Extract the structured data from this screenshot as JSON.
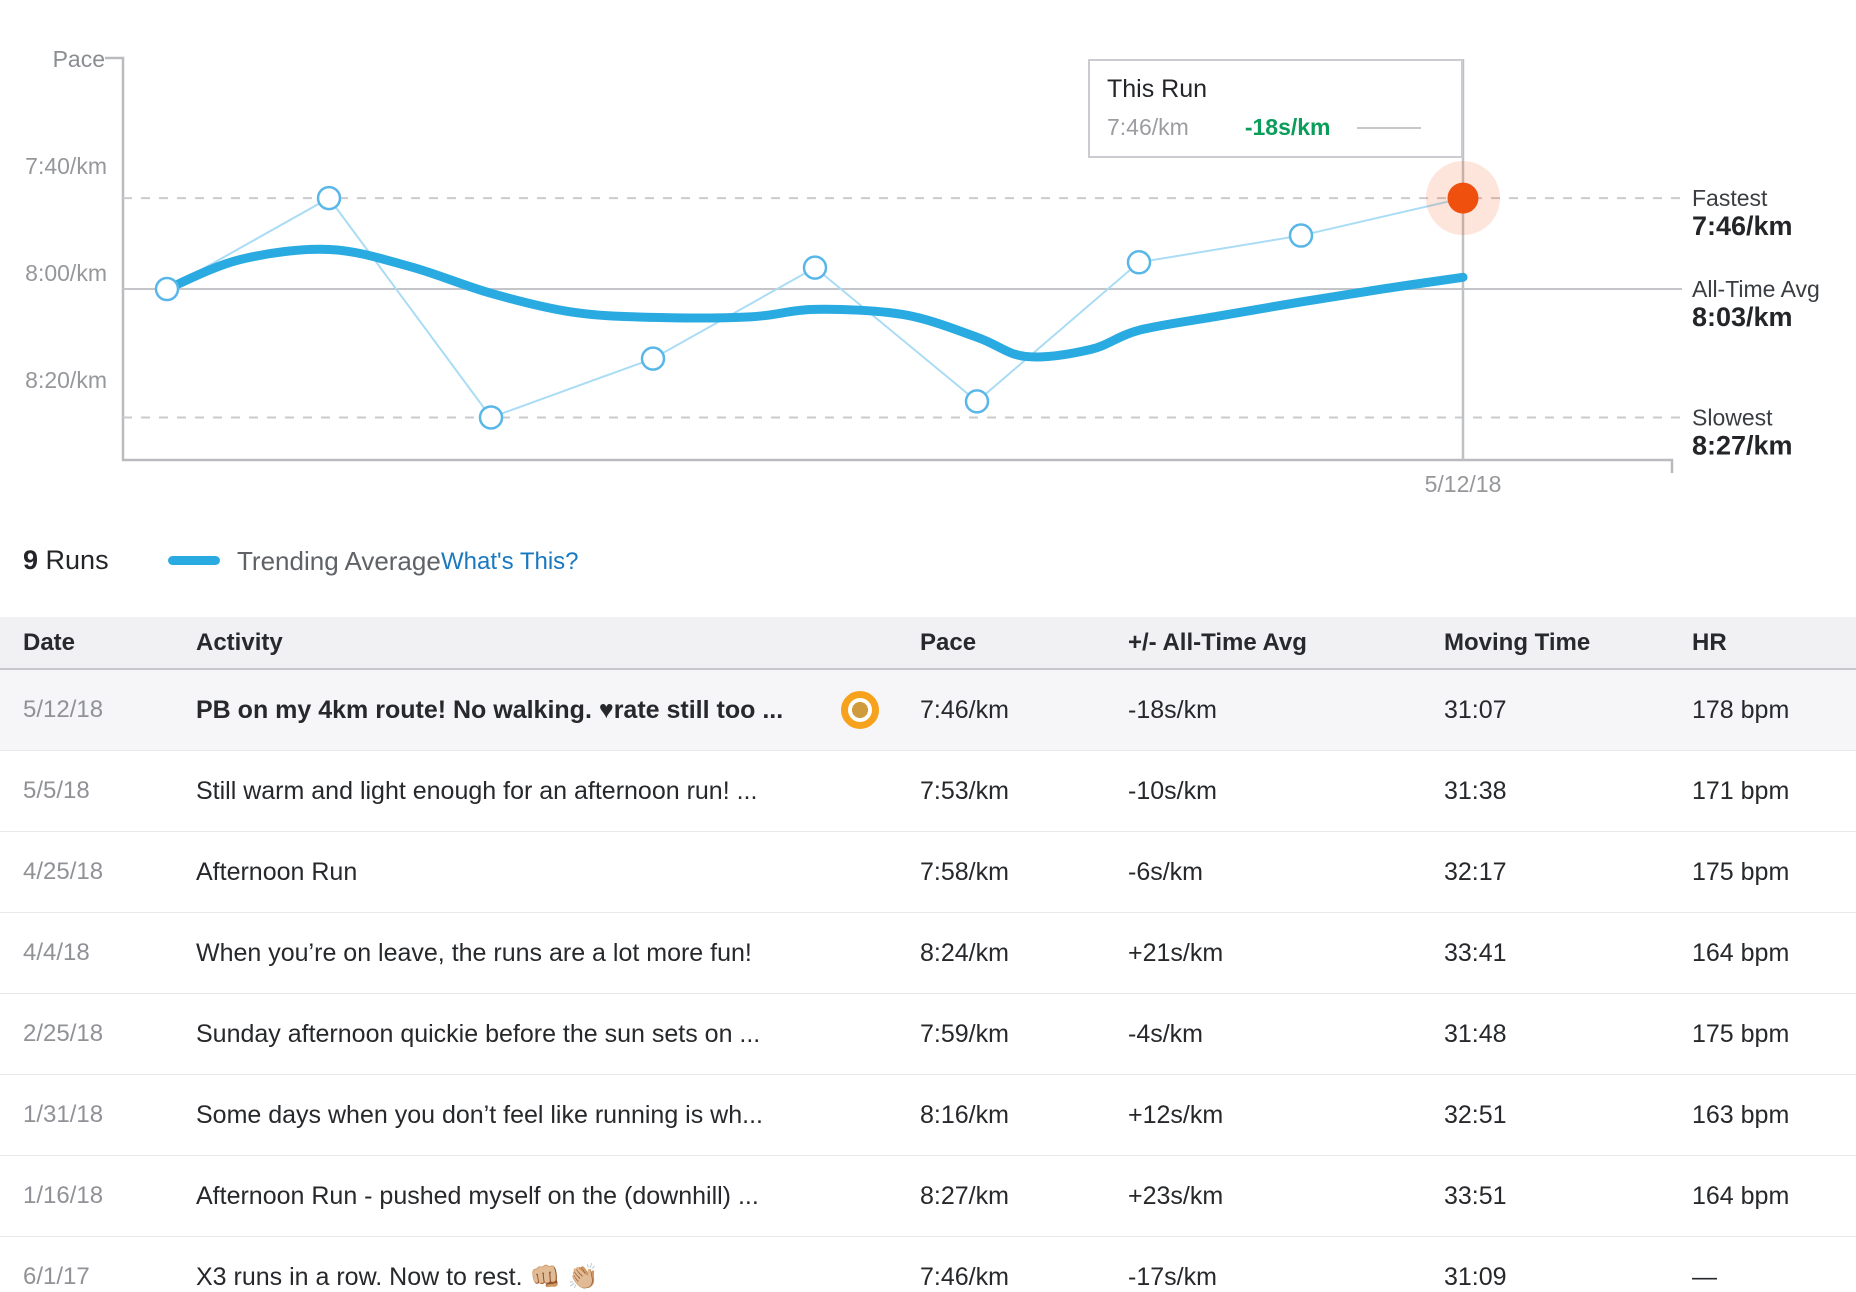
{
  "colors": {
    "trend_blue": "#29abe2",
    "series_line_blue": "#aadcf5",
    "point_stroke_blue": "#58b7e8",
    "highlight_red": "#f0500e",
    "highlight_halo": "rgba(241,80,17,0.15)",
    "delta_green": "#0b9e5a",
    "link_blue": "#1878c0",
    "badge_orange": "#f7a21c",
    "axis_gray": "#b9bbbe",
    "dashed_gray": "#c9cbce",
    "avg_line_gray": "#c3c5c8",
    "tick_text_gray": "#95979b"
  },
  "chart_data": {
    "type": "line",
    "y_axis_title": "Pace",
    "y_ticks": [
      "7:40/km",
      "8:00/km",
      "8:20/km"
    ],
    "x_tick_label": "5/12/18",
    "ref_lines": [
      {
        "name": "Fastest",
        "value": "7:46/km",
        "style": "dashed"
      },
      {
        "name": "All-Time Avg",
        "value": "8:03/km",
        "style": "solid"
      },
      {
        "name": "Slowest",
        "value": "8:27/km",
        "style": "dashed"
      }
    ],
    "runs_paces": [
      "8:03",
      "7:46",
      "8:27",
      "8:16",
      "7:59",
      "8:24",
      "7:58",
      "7:53",
      "7:46"
    ],
    "highlight_index": 8,
    "trend_pace_seconds": [
      [
        0,
        483
      ],
      [
        0.45,
        477.5
      ],
      [
        1,
        475.6
      ],
      [
        1.5,
        478.8
      ],
      [
        2,
        483.8
      ],
      [
        2.5,
        487.3
      ],
      [
        3,
        488.3
      ],
      [
        3.6,
        488.2
      ],
      [
        4,
        486.8
      ],
      [
        4.55,
        487.8
      ],
      [
        5,
        492
      ],
      [
        5.3,
        495.6
      ],
      [
        5.7,
        494.3
      ],
      [
        6,
        490.7
      ],
      [
        6.5,
        488
      ],
      [
        7,
        485.4
      ],
      [
        7.5,
        483
      ],
      [
        8,
        480.8
      ]
    ]
  },
  "tooltip": {
    "title": "This Run",
    "pace": "7:46/km",
    "delta": "-18s/km"
  },
  "legend": {
    "count": "9",
    "count_label": "Runs",
    "trend_label": "Trending Average",
    "whats_this": "What's This?"
  },
  "table": {
    "columns": [
      "Date",
      "Activity",
      "Pace",
      "+/- All-Time Avg",
      "Moving Time",
      "HR"
    ],
    "rows": [
      {
        "date": "5/12/18",
        "activity": "PB on my 4km route! No walking. ♥rate still too ...",
        "bold": true,
        "badge": true,
        "highlighted": true,
        "pace": "7:46/km",
        "delta": "-18s/km",
        "moving_time": "31:07",
        "hr": "178 bpm"
      },
      {
        "date": "5/5/18",
        "activity": "Still warm and light enough for an afternoon run! ...",
        "bold": false,
        "badge": false,
        "highlighted": false,
        "pace": "7:53/km",
        "delta": "-10s/km",
        "moving_time": "31:38",
        "hr": "171 bpm"
      },
      {
        "date": "4/25/18",
        "activity": "Afternoon Run",
        "bold": false,
        "badge": false,
        "highlighted": false,
        "pace": "7:58/km",
        "delta": "-6s/km",
        "moving_time": "32:17",
        "hr": "175 bpm"
      },
      {
        "date": "4/4/18",
        "activity": "When you’re on leave, the runs are a lot more fun!",
        "bold": false,
        "badge": false,
        "highlighted": false,
        "pace": "8:24/km",
        "delta": "+21s/km",
        "moving_time": "33:41",
        "hr": "164 bpm"
      },
      {
        "date": "2/25/18",
        "activity": "Sunday afternoon quickie before the sun sets on ...",
        "bold": false,
        "badge": false,
        "highlighted": false,
        "pace": "7:59/km",
        "delta": "-4s/km",
        "moving_time": "31:48",
        "hr": "175 bpm"
      },
      {
        "date": "1/31/18",
        "activity": "Some days when you don’t feel like running is wh...",
        "bold": false,
        "badge": false,
        "highlighted": false,
        "pace": "8:16/km",
        "delta": "+12s/km",
        "moving_time": "32:51",
        "hr": "163 bpm"
      },
      {
        "date": "1/16/18",
        "activity": "Afternoon Run - pushed myself on the (downhill) ...",
        "bold": false,
        "badge": false,
        "highlighted": false,
        "pace": "8:27/km",
        "delta": "+23s/km",
        "moving_time": "33:51",
        "hr": "164 bpm"
      },
      {
        "date": "6/1/17",
        "activity": "X3 runs in a row. Now to rest. 👊🏼 👏🏼",
        "bold": false,
        "badge": false,
        "highlighted": false,
        "pace": "7:46/km",
        "delta": "-17s/km",
        "moving_time": "31:09",
        "hr": "—"
      }
    ]
  }
}
